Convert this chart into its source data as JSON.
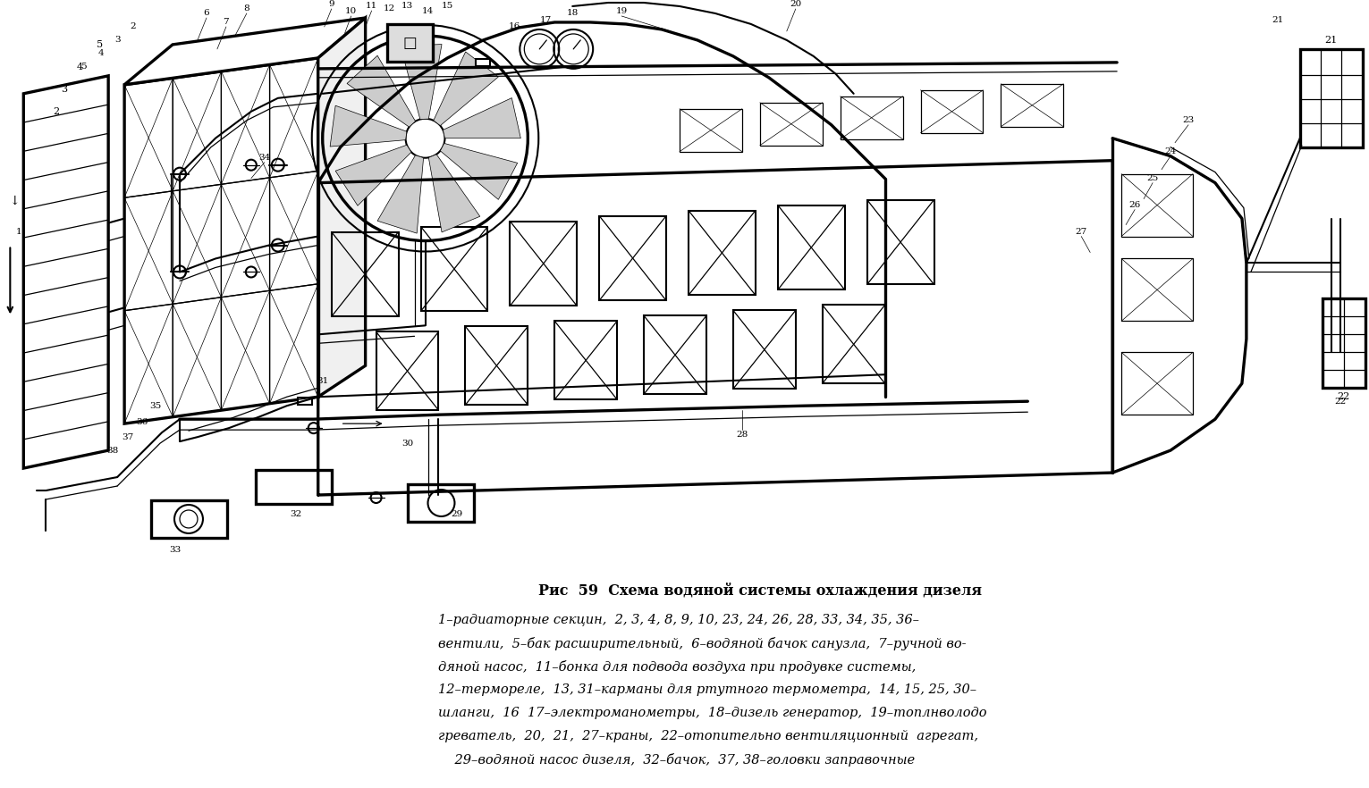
{
  "title_line": "Рис  59  Схема водяной системы охлаждения дизеля",
  "caption_lines": [
    "1–радиаторные секцин,  2, 3, 4, 8, 9, 10, 23, 24, 26, 28, 33, 34, 35, 36–",
    "вентили,  5–бак расширительный,  6–водяной бачок санузла,  7–ручной во-",
    "дяной насос,  11–бонка для подвода воздуха при продувке системы,",
    "12–термореле,  13, 31–карманы для ртутного термометра,  14, 15, 25, 30–",
    "шланги,  16  17–электроманометры,  18–дизель генератор,  19–топлнволодо",
    "греватель,  20,  21,  27–краны,  22–отопительно вентиляцkonный  агрегат,",
    "29–водяной насос дизеля,  32–бачок,  37, 38–головки заправочные"
  ],
  "bg_color": "#ffffff",
  "text_color": "#000000",
  "title_fontsize": 11.5,
  "caption_fontsize": 10.5,
  "fig_width": 15.31,
  "fig_height": 8.82,
  "dpi": 100
}
